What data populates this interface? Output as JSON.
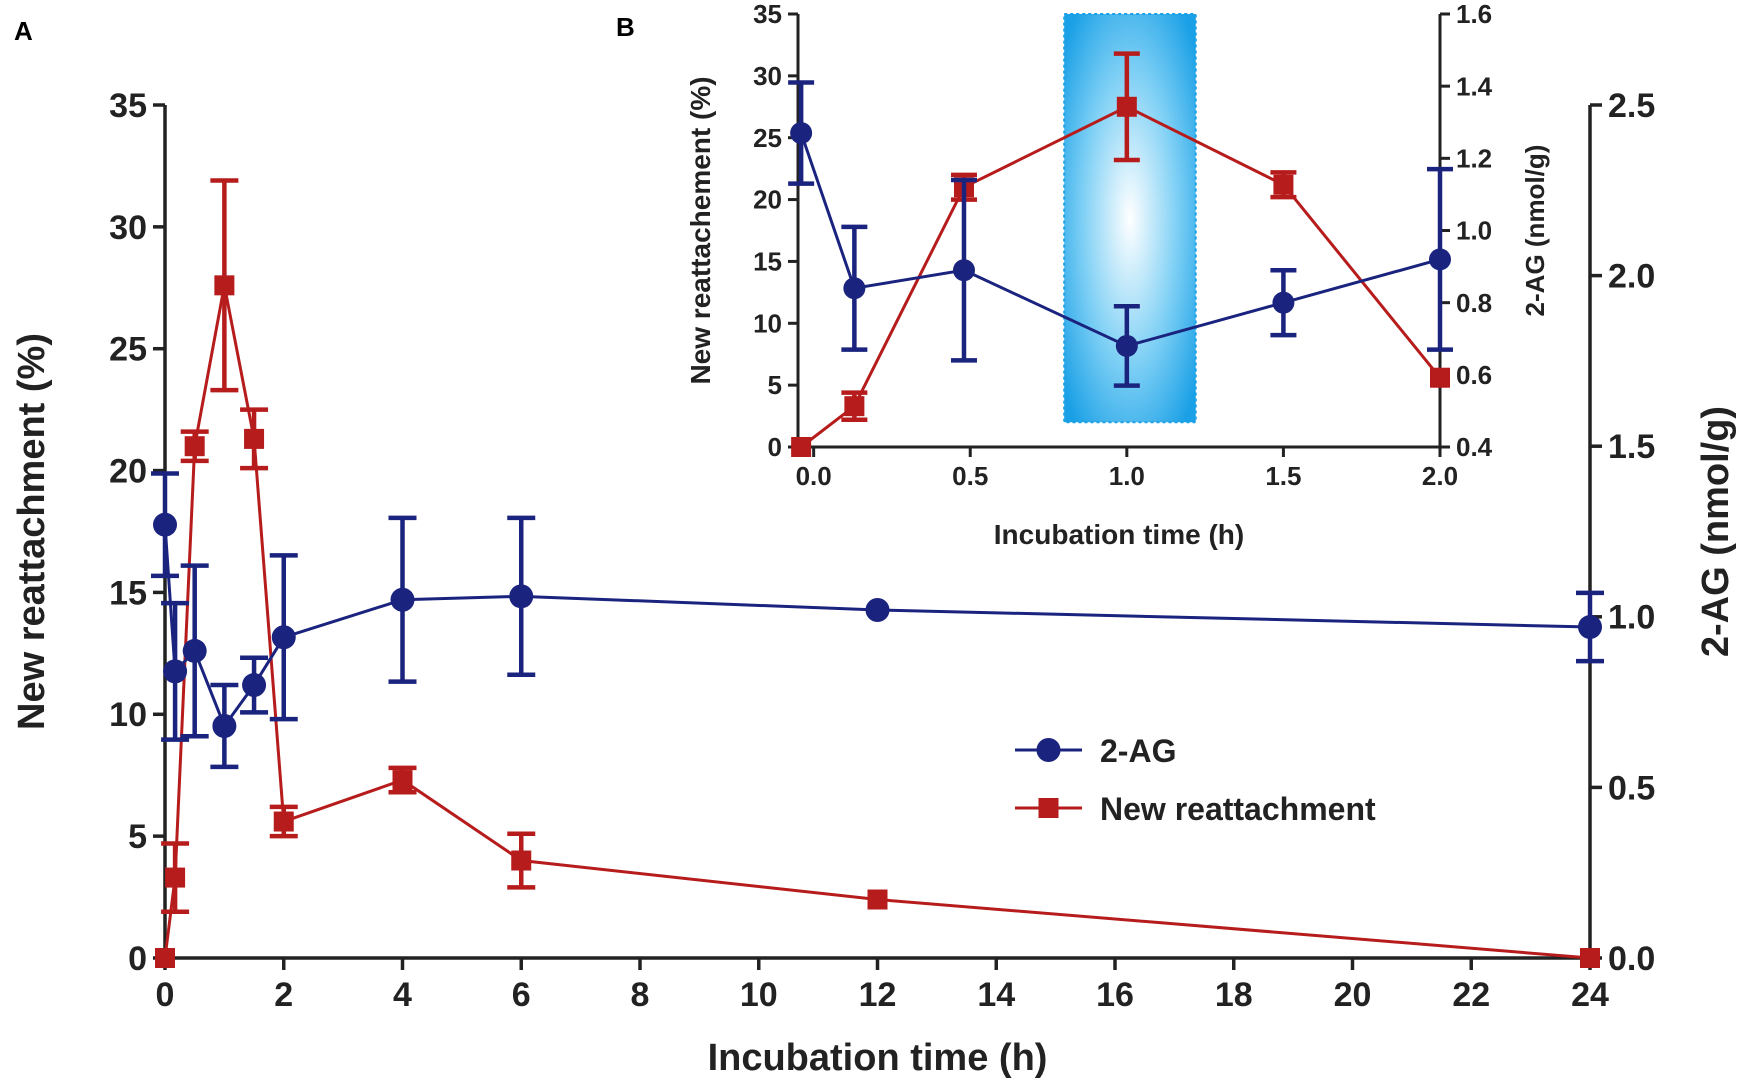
{
  "colors": {
    "ag": "#1a237e",
    "reattach": "#b71c1c",
    "axis": "#222222",
    "highlight_edge": "#1aa0e6",
    "highlight_center": "#ffffff"
  },
  "legend": {
    "ag_label": "2-AG",
    "reattach_label": "New reattachment"
  },
  "chart_data": [
    {
      "panel": "A",
      "type": "line",
      "xlabel": "Incubation time (h)",
      "ylabel": "New reattachment (%)",
      "y2label": "2-AG (nmol/g)",
      "xlim": [
        0,
        24
      ],
      "ylim": [
        0,
        35
      ],
      "y2lim": [
        0,
        2.5
      ],
      "xticks": [
        0,
        2,
        4,
        6,
        8,
        10,
        12,
        14,
        16,
        18,
        20,
        22,
        24
      ],
      "yticks": [
        0,
        5,
        10,
        15,
        20,
        25,
        30,
        35
      ],
      "y2ticks": [
        0.0,
        0.5,
        1.0,
        1.5,
        2.0,
        2.5
      ],
      "legend_position": "center-right",
      "series": [
        {
          "name": "2-AG",
          "axis": "right",
          "marker": "circle",
          "x": [
            0,
            0.17,
            0.5,
            1,
            1.5,
            2,
            4,
            6,
            12,
            24
          ],
          "values": [
            1.27,
            0.84,
            0.9,
            0.68,
            0.8,
            0.94,
            1.05,
            1.06,
            1.02,
            0.97
          ],
          "error": [
            0.15,
            0.2,
            0.25,
            0.12,
            0.08,
            0.24,
            0.24,
            0.23,
            0.0,
            0.1
          ]
        },
        {
          "name": "New reattachment",
          "axis": "left",
          "marker": "square",
          "x": [
            0,
            0.17,
            0.5,
            1,
            1.5,
            2,
            4,
            6,
            12,
            24
          ],
          "values": [
            0,
            3.3,
            21,
            27.6,
            21.3,
            5.6,
            7.3,
            4,
            2.4,
            0
          ],
          "error": [
            0,
            1.4,
            0.6,
            4.3,
            1.2,
            0.6,
            0.5,
            1.1,
            0.0,
            0
          ]
        }
      ]
    },
    {
      "panel": "B",
      "type": "line",
      "xlabel": "Incubation time (h)",
      "ylabel": "New reattachement (%)",
      "y2label": "2-AG (nmol/g)",
      "xlim": [
        -0.05,
        2.0
      ],
      "ylim": [
        0,
        35
      ],
      "y2lim": [
        0.4,
        1.6
      ],
      "xticks": [
        0.0,
        0.5,
        1.0,
        1.5,
        2.0
      ],
      "xtick_labels": [
        "0.0",
        "0.5",
        "1.0",
        "1.5",
        "2.0"
      ],
      "yticks": [
        0,
        5,
        10,
        15,
        20,
        25,
        30,
        35
      ],
      "y2ticks": [
        0.4,
        0.6,
        0.8,
        1.0,
        1.2,
        1.4,
        1.6
      ],
      "y2tick_labels": [
        "0.4",
        "0.6",
        "0.8",
        "1.0",
        "1.2",
        "1.4",
        "1.6"
      ],
      "highlight_x_range": [
        0.8,
        1.22
      ],
      "highlight_y_range": [
        2,
        35
      ],
      "series": [
        {
          "name": "2-AG",
          "axis": "right",
          "marker": "circle",
          "x": [
            -0.04,
            0.13,
            0.48,
            1.0,
            1.5,
            2.0
          ],
          "values": [
            1.27,
            0.84,
            0.89,
            0.68,
            0.8,
            0.92
          ],
          "error": [
            0.14,
            0.17,
            0.25,
            0.11,
            0.09,
            0.25
          ]
        },
        {
          "name": "New reattachment",
          "axis": "left",
          "marker": "square",
          "x": [
            -0.04,
            0.13,
            0.48,
            1.0,
            1.5,
            2.0
          ],
          "values": [
            0,
            3.3,
            21,
            27.5,
            21.2,
            5.6
          ],
          "error": [
            0,
            1.1,
            1.0,
            4.3,
            1.0,
            0
          ]
        }
      ]
    }
  ]
}
